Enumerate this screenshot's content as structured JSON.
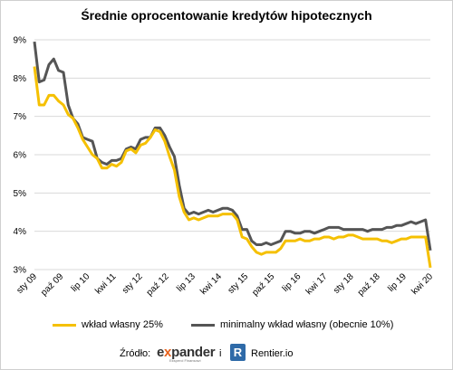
{
  "chart_data": {
    "type": "line",
    "title": "Średnie oprocentowanie kredytów hipotecznych",
    "y_ticks": [
      "9%",
      "8%",
      "7%",
      "6%",
      "5%",
      "4%",
      "3%"
    ],
    "y_tick_values": [
      9,
      8,
      7,
      6,
      5,
      4,
      3
    ],
    "ylim": [
      3,
      9
    ],
    "x_ticks": [
      "sty 09",
      "paź 09",
      "lip 10",
      "kwi 11",
      "sty 12",
      "paź 12",
      "lip 13",
      "kwi 14",
      "sty 15",
      "paź 15",
      "lip 16",
      "kwi 17",
      "sty 18",
      "paź 18",
      "lip 19",
      "kwi 20"
    ],
    "xlabel": "",
    "ylabel": "",
    "grid": true,
    "legend_position": "bottom",
    "x_start": "2009-01",
    "x_end": "2020-04",
    "series": [
      {
        "name": "wkład własny 25%",
        "color": "#f5c000",
        "values": [
          8.3,
          7.3,
          7.3,
          7.55,
          7.55,
          7.4,
          7.3,
          7.05,
          6.95,
          6.7,
          6.4,
          6.2,
          6.0,
          5.9,
          5.65,
          5.65,
          5.75,
          5.7,
          5.8,
          6.1,
          6.15,
          6.05,
          6.25,
          6.3,
          6.45,
          6.65,
          6.6,
          6.35,
          5.95,
          5.6,
          4.9,
          4.5,
          4.3,
          4.35,
          4.3,
          4.35,
          4.4,
          4.4,
          4.4,
          4.45,
          4.45,
          4.45,
          4.3,
          3.85,
          3.8,
          3.6,
          3.45,
          3.4,
          3.45,
          3.45,
          3.45,
          3.55,
          3.75,
          3.75,
          3.75,
          3.8,
          3.75,
          3.75,
          3.8,
          3.8,
          3.85,
          3.85,
          3.8,
          3.85,
          3.85,
          3.9,
          3.9,
          3.85,
          3.8,
          3.8,
          3.8,
          3.8,
          3.75,
          3.75,
          3.7,
          3.75,
          3.8,
          3.8,
          3.85,
          3.85,
          3.85,
          3.85,
          3.05
        ]
      },
      {
        "name": "minimalny wkład własny (obecnie 10%)",
        "color": "#555555",
        "values": [
          8.95,
          7.9,
          7.95,
          8.35,
          8.5,
          8.2,
          8.15,
          7.3,
          6.95,
          6.8,
          6.45,
          6.4,
          6.35,
          5.9,
          5.8,
          5.75,
          5.85,
          5.85,
          5.9,
          6.15,
          6.2,
          6.15,
          6.4,
          6.45,
          6.45,
          6.7,
          6.7,
          6.5,
          6.2,
          5.95,
          5.2,
          4.6,
          4.45,
          4.5,
          4.45,
          4.5,
          4.55,
          4.5,
          4.55,
          4.6,
          4.6,
          4.55,
          4.4,
          4.05,
          4.05,
          3.75,
          3.65,
          3.65,
          3.7,
          3.65,
          3.7,
          3.75,
          4.0,
          4.0,
          3.95,
          3.95,
          4.0,
          4.0,
          3.95,
          4.0,
          4.05,
          4.1,
          4.1,
          4.1,
          4.05,
          4.05,
          4.05,
          4.05,
          4.05,
          4.0,
          4.05,
          4.05,
          4.05,
          4.1,
          4.1,
          4.15,
          4.15,
          4.2,
          4.25,
          4.2,
          4.25,
          4.3,
          3.5
        ]
      }
    ]
  },
  "source": {
    "label": "Źródło:",
    "expander_prefix": "e",
    "expander_x": "x",
    "expander_rest": "pander",
    "expander_tagline": "Eksperci Finansowi",
    "conjunction": "i",
    "rentier_badge": "R",
    "rentier_name": "Rentier.io"
  }
}
